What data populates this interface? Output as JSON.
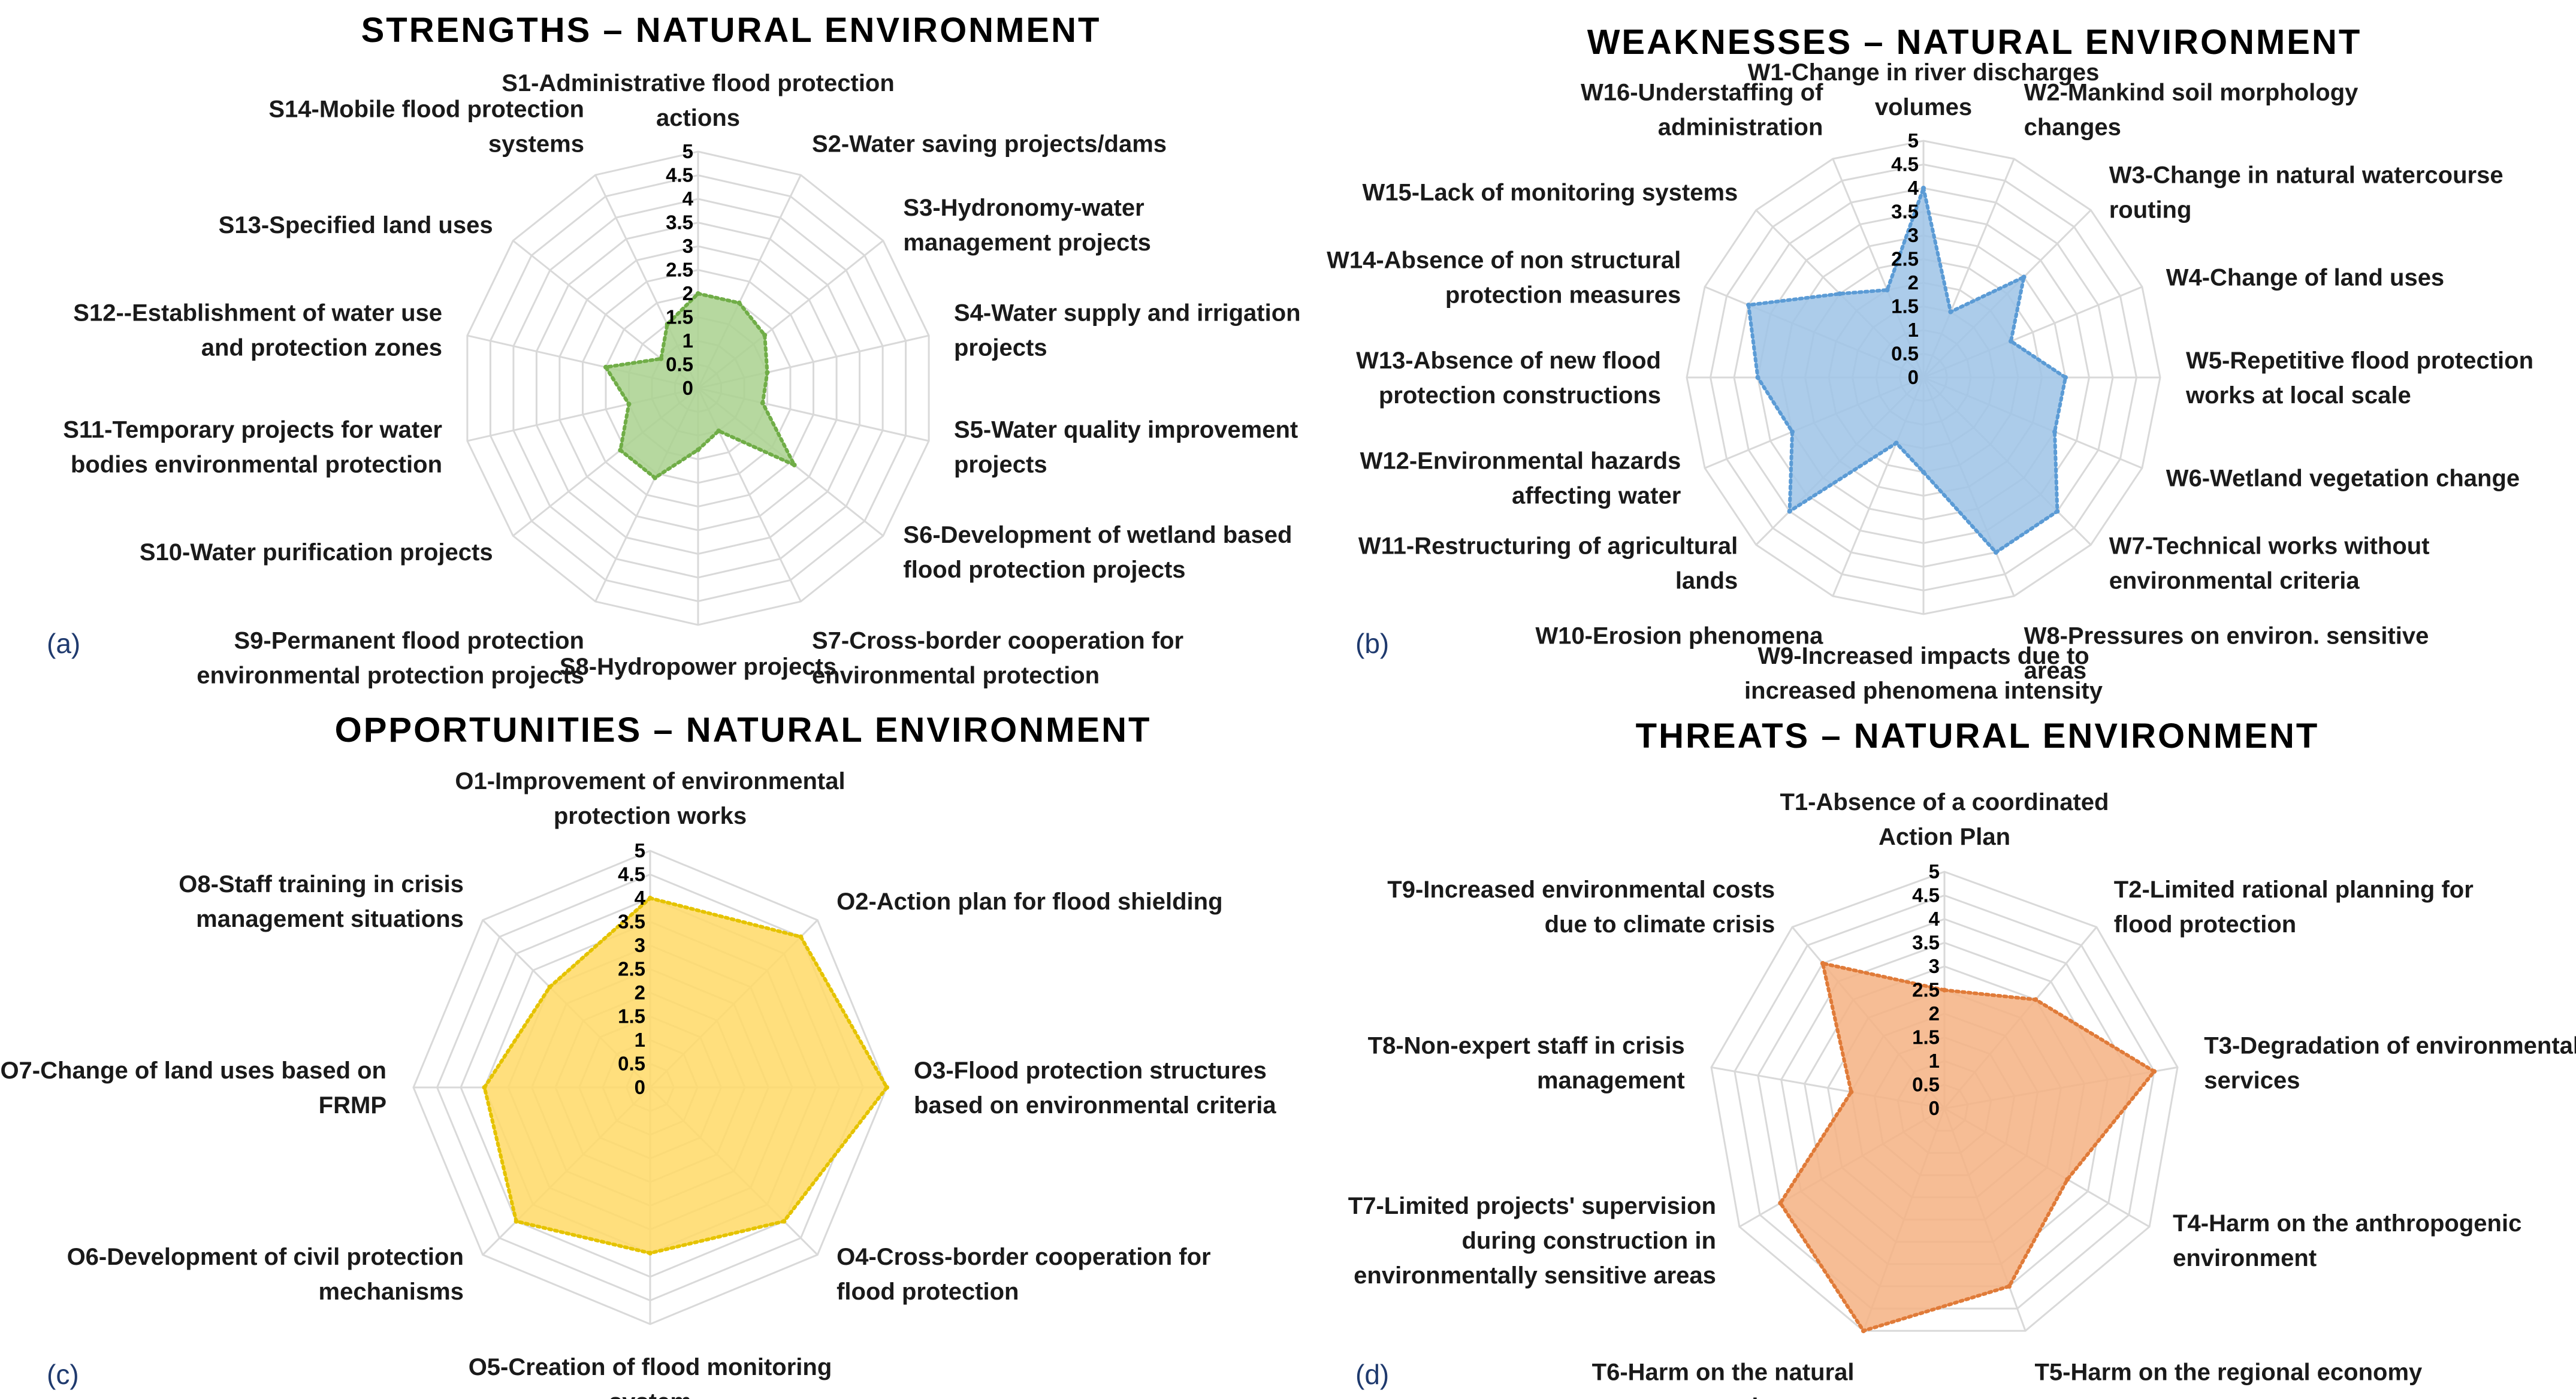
{
  "chart_data": [
    {
      "type": "radar",
      "panel": "(a)",
      "title": "STRENGTHS – NATURAL ENVIRONMENT",
      "rlim": [
        0,
        5
      ],
      "ticks": [
        "0",
        "0.5",
        "1",
        "1.5",
        "2",
        "2.5",
        "3",
        "3.5",
        "4",
        "4.5",
        "5"
      ],
      "fill": "#a9d18e",
      "stroke": "#70ad47",
      "categories": [
        [
          "S1-Administrative flood protection",
          "actions"
        ],
        [
          "S2-Water saving projects/dams"
        ],
        [
          "S3-Hydronomy-water",
          "management projects"
        ],
        [
          "S4-Water supply and irrigation",
          "projects"
        ],
        [
          "S5-Water quality improvement",
          "projects"
        ],
        [
          "S6-Development of wetland based",
          "flood protection projects"
        ],
        [
          "S7-Cross-border cooperation for",
          "environmental protection"
        ],
        [
          "S8-Hydropower projects"
        ],
        [
          "S9-Permanent flood protection",
          "environmental protection projects"
        ],
        [
          "S10-Water purification projects"
        ],
        [
          "S11-Temporary projects for water",
          "bodies environmental protection"
        ],
        [
          "S12--Establishment of water use",
          "and protection zones"
        ],
        [
          "S13-Specified land uses"
        ],
        [
          "S14-Mobile flood protection",
          "systems"
        ]
      ],
      "values": [
        2.0,
        2.0,
        1.8,
        1.5,
        1.4,
        2.6,
        1.0,
        1.3,
        2.1,
        2.1,
        1.5,
        2.0,
        1.0,
        1.5
      ]
    },
    {
      "type": "radar",
      "panel": "(b)",
      "title": "WEAKNESSES – NATURAL ENVIRONMENT",
      "rlim": [
        0,
        5
      ],
      "ticks": [
        "0",
        "0.5",
        "1",
        "1.5",
        "2",
        "2.5",
        "3",
        "3.5",
        "4",
        "4.5",
        "5"
      ],
      "fill": "#9dc3e6",
      "stroke": "#5b9bd5",
      "categories": [
        [
          "W1-Change in river discharges",
          "volumes"
        ],
        [
          "W2-Mankind soil morphology",
          "changes"
        ],
        [
          "W3-Change in natural watercourse",
          "routing"
        ],
        [
          "W4-Change of land uses"
        ],
        [
          "W5-Repetitive flood protection",
          "works at local scale"
        ],
        [
          "W6-Wetland vegetation change"
        ],
        [
          "W7-Technical works without",
          "environmental criteria"
        ],
        [
          "W8-Pressures on environ. sensitive",
          "areas"
        ],
        [
          "W9-Increased impacts due to",
          "increased phenomena intensity"
        ],
        [
          "W10-Erosion phenomena"
        ],
        [
          "W11-Restructuring of agricultural",
          "lands"
        ],
        [
          "W12-Environmental hazards",
          "affecting water"
        ],
        [
          "W13-Absence of new flood",
          "protection constructions"
        ],
        [
          "W14-Absence of non structural",
          "protection measures"
        ],
        [
          "W15-Lack of monitoring systems"
        ],
        [
          "W16-Understaffing of",
          "administration"
        ]
      ],
      "values": [
        4.0,
        1.5,
        3.0,
        2.0,
        3.0,
        3.0,
        4.0,
        4.0,
        2.0,
        1.5,
        4.0,
        3.0,
        3.5,
        4.0,
        2.5,
        2.0
      ]
    },
    {
      "type": "radar",
      "panel": "(c)",
      "title": "OPPORTUNITIES – NATURAL ENVIRONMENT",
      "rlim": [
        0,
        5
      ],
      "ticks": [
        "0",
        "0.5",
        "1",
        "1.5",
        "2",
        "2.5",
        "3",
        "3.5",
        "4",
        "4.5",
        "5"
      ],
      "fill": "#ffd966",
      "stroke": "#e5c300",
      "categories": [
        [
          "O1-Improvement of environmental",
          "protection works"
        ],
        [
          "O2-Action plan for flood shielding"
        ],
        [
          "O3-Flood protection structures",
          "based on environmental criteria"
        ],
        [
          "O4-Cross-border cooperation for",
          "flood protection"
        ],
        [
          "O5-Creation of flood monitoring",
          "system"
        ],
        [
          "O6-Development of civil protection",
          "mechanisms"
        ],
        [
          "O7-Change of land uses based on",
          "FRMP"
        ],
        [
          "O8-Staff training in crisis",
          "management situations"
        ]
      ],
      "values": [
        4.0,
        4.5,
        5.0,
        4.0,
        3.5,
        4.0,
        3.5,
        3.0
      ]
    },
    {
      "type": "radar",
      "panel": "(d)",
      "title": "THREATS – NATURAL ENVIRONMENT",
      "rlim": [
        0,
        5
      ],
      "ticks": [
        "0",
        "0.5",
        "1",
        "1.5",
        "2",
        "2.5",
        "3",
        "3.5",
        "4",
        "4.5",
        "5"
      ],
      "fill": "#f4b183",
      "stroke": "#e07b39",
      "categories": [
        [
          "T1-Absence of a coordinated",
          "Action Plan"
        ],
        [
          "T2-Limited rational planning for",
          "flood protection"
        ],
        [
          "T3-Degradation of environmental",
          "services"
        ],
        [
          "T4-Harm on the anthropogenic",
          "environment"
        ],
        [
          "T5-Harm on the regional economy"
        ],
        [
          "T6-Harm on the natural",
          "environment"
        ],
        [
          "T7-Limited projects' supervision",
          "during construction in",
          "environmentally sensitive areas"
        ],
        [
          "T8-Non-expert staff in crisis",
          "management"
        ],
        [
          "T9-Increased environmental costs",
          "due to climate crisis"
        ]
      ],
      "values": [
        2.5,
        3.0,
        4.5,
        3.0,
        4.0,
        5.0,
        4.0,
        2.0,
        4.0
      ]
    }
  ]
}
